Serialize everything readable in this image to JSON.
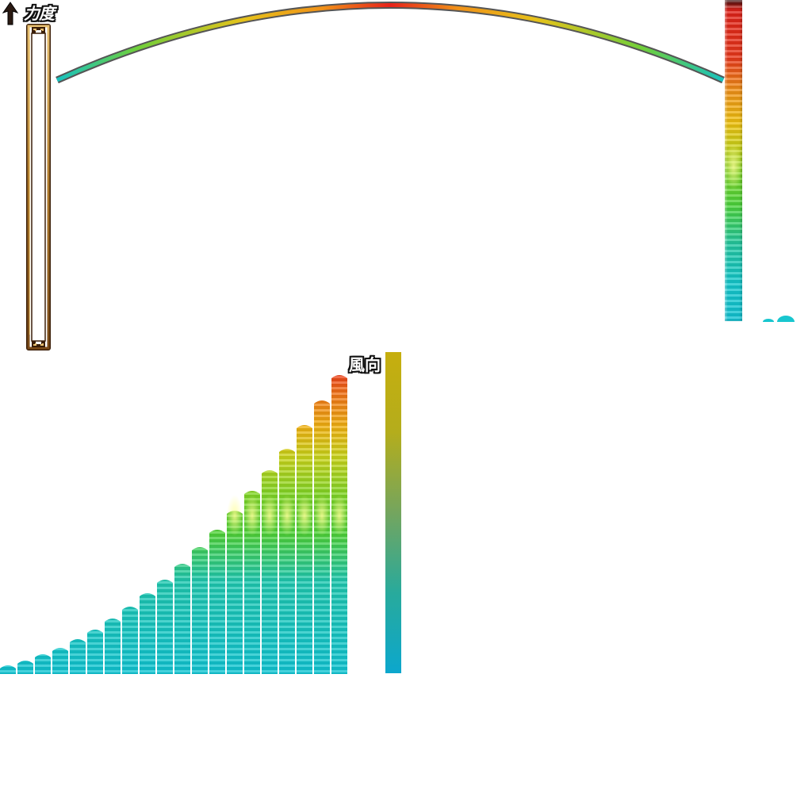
{
  "hud": {
    "power_label": "力度",
    "wind_label": "風向"
  },
  "icons": {
    "power": "up-arrow-icon"
  },
  "colors": {
    "cyan": "#12c6d0",
    "green": "#7ad526",
    "yellow": "#f0c010",
    "orange": "#f09018",
    "red": "#e0221a",
    "frame_gold": "#b07a2a",
    "frame_dark": "#3a1e08"
  },
  "power_bar_sprites": {
    "count": 20
  }
}
